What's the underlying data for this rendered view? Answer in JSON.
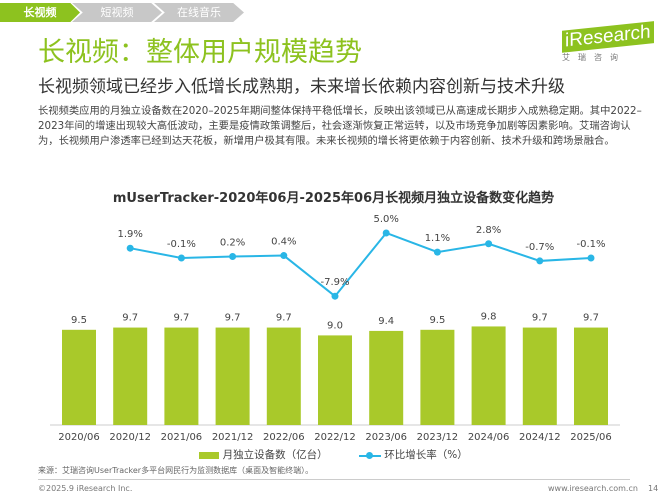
{
  "tabs": [
    {
      "label": "长视频",
      "active": true
    },
    {
      "label": "短视频",
      "active": false
    },
    {
      "label": "在线音乐",
      "active": false
    }
  ],
  "header": {
    "title": "长视频：整体用户规模趋势",
    "subtitle": "长视频领域已经步入低增长成熟期，未来增长依赖内容创新与技术升级",
    "body": "长视频类应用的月独立设备数在2020–2025年期间整体保持平稳低增长，反映出该领域已从高速成长期步入成熟稳定期。其中2022–2023年间的增速出现较大高低波动，主要是疫情政策调整后，社会逐渐恢复正常运转，以及市场竞争加剧等因素影响。艾瑞咨询认为，长视频用户渗透率已经到达天花板，新增用户极其有限。未来长视频的增长将更依赖于内容创新、技术升级和跨场景融合。"
  },
  "logo": {
    "brand": "iResearch",
    "sub": "艾瑞咨询"
  },
  "colors": {
    "accent": "#8dc21f",
    "bar": "#a9c92a",
    "line": "#29b6e6",
    "tab_inactive": "#c8c8c8"
  },
  "chart_data": {
    "type": "bar+line",
    "title": "mUserTracker-2020年06月-2025年06月长视频月独立设备数变化趋势",
    "categories": [
      "2020/06",
      "2020/12",
      "2021/06",
      "2021/12",
      "2022/06",
      "2022/12",
      "2023/06",
      "2023/12",
      "2024/06",
      "2024/12",
      "2025/06"
    ],
    "series": [
      {
        "name": "月独立设备数（亿台）",
        "type": "bar",
        "values": [
          9.5,
          9.7,
          9.7,
          9.7,
          9.7,
          9.0,
          9.4,
          9.5,
          9.8,
          9.7,
          9.7
        ],
        "labels": [
          "9.5",
          "9.7",
          "9.7",
          "9.7",
          "9.7",
          "9.0",
          "9.4",
          "9.5",
          "9.8",
          "9.7",
          "9.7"
        ]
      },
      {
        "name": "环比增长率（%）",
        "type": "line",
        "values": [
          null,
          1.9,
          -0.1,
          0.2,
          0.4,
          -7.9,
          5.0,
          1.1,
          2.8,
          -0.7,
          -0.1
        ],
        "labels": [
          "",
          "1.9%",
          "-0.1%",
          "0.2%",
          "0.4%",
          "-7.9%",
          "5.0%",
          "1.1%",
          "2.8%",
          "-0.7%",
          "-0.1%"
        ]
      }
    ],
    "legend": "bottom",
    "grid": false
  },
  "footer": {
    "source": "来源：艾瑞咨询UserTracker多平台网民行为监测数据库（桌面及智能终端）。",
    "copyright": "©2025.9 iResearch Inc.",
    "url": "www.iresearch.com.cn",
    "page": "14"
  }
}
